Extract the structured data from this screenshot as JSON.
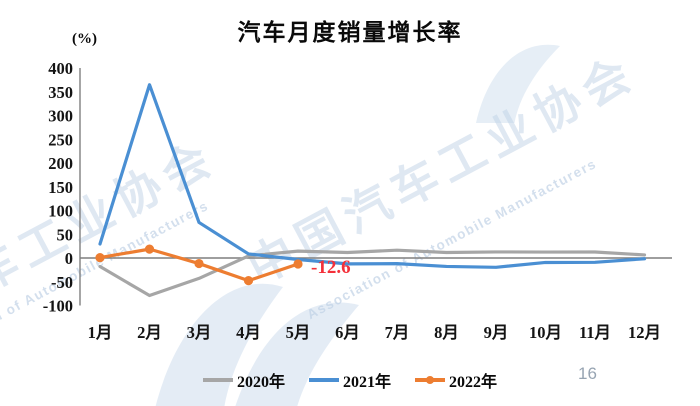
{
  "page": {
    "number": "16"
  },
  "chart": {
    "title": "汽车月度销量增长率",
    "unit_label": "(%)"
  },
  "watermark": {
    "cn": "中国汽车工业协会",
    "en": "Association of Automobile Manufacturers"
  },
  "chart_data": {
    "type": "line",
    "title": "汽车月度销量增长率",
    "ylabel": "(%)",
    "categories": [
      "1月",
      "2月",
      "3月",
      "4月",
      "5月",
      "6月",
      "7月",
      "8月",
      "9月",
      "10月",
      "11月",
      "12月"
    ],
    "series": [
      {
        "name": "2020年",
        "color": "#a6a6a6",
        "marker": false,
        "values": [
          -18,
          -79,
          -43,
          4.4,
          14.5,
          11.6,
          16.4,
          11.6,
          12.8,
          12.5,
          12.6,
          6.4
        ]
      },
      {
        "name": "2021年",
        "color": "#4a8fd3",
        "marker": false,
        "values": [
          29.5,
          364.8,
          74.9,
          8.6,
          -3.1,
          -12.4,
          -11.9,
          -17.8,
          -19.6,
          -9.4,
          -9.1,
          -1.6
        ]
      },
      {
        "name": "2022年",
        "color": "#ed7d31",
        "marker": true,
        "values": [
          0.9,
          18.7,
          -11.7,
          -47.6,
          -12.6
        ]
      }
    ],
    "yticks": [
      400,
      350,
      300,
      250,
      200,
      150,
      100,
      50,
      0,
      -50,
      -100
    ],
    "ylim": [
      -100,
      400
    ],
    "grid": false,
    "legend_position": "bottom",
    "annotation": {
      "text": "-12.6",
      "series": "2022年",
      "index": 4,
      "color": "#f4303a"
    }
  }
}
